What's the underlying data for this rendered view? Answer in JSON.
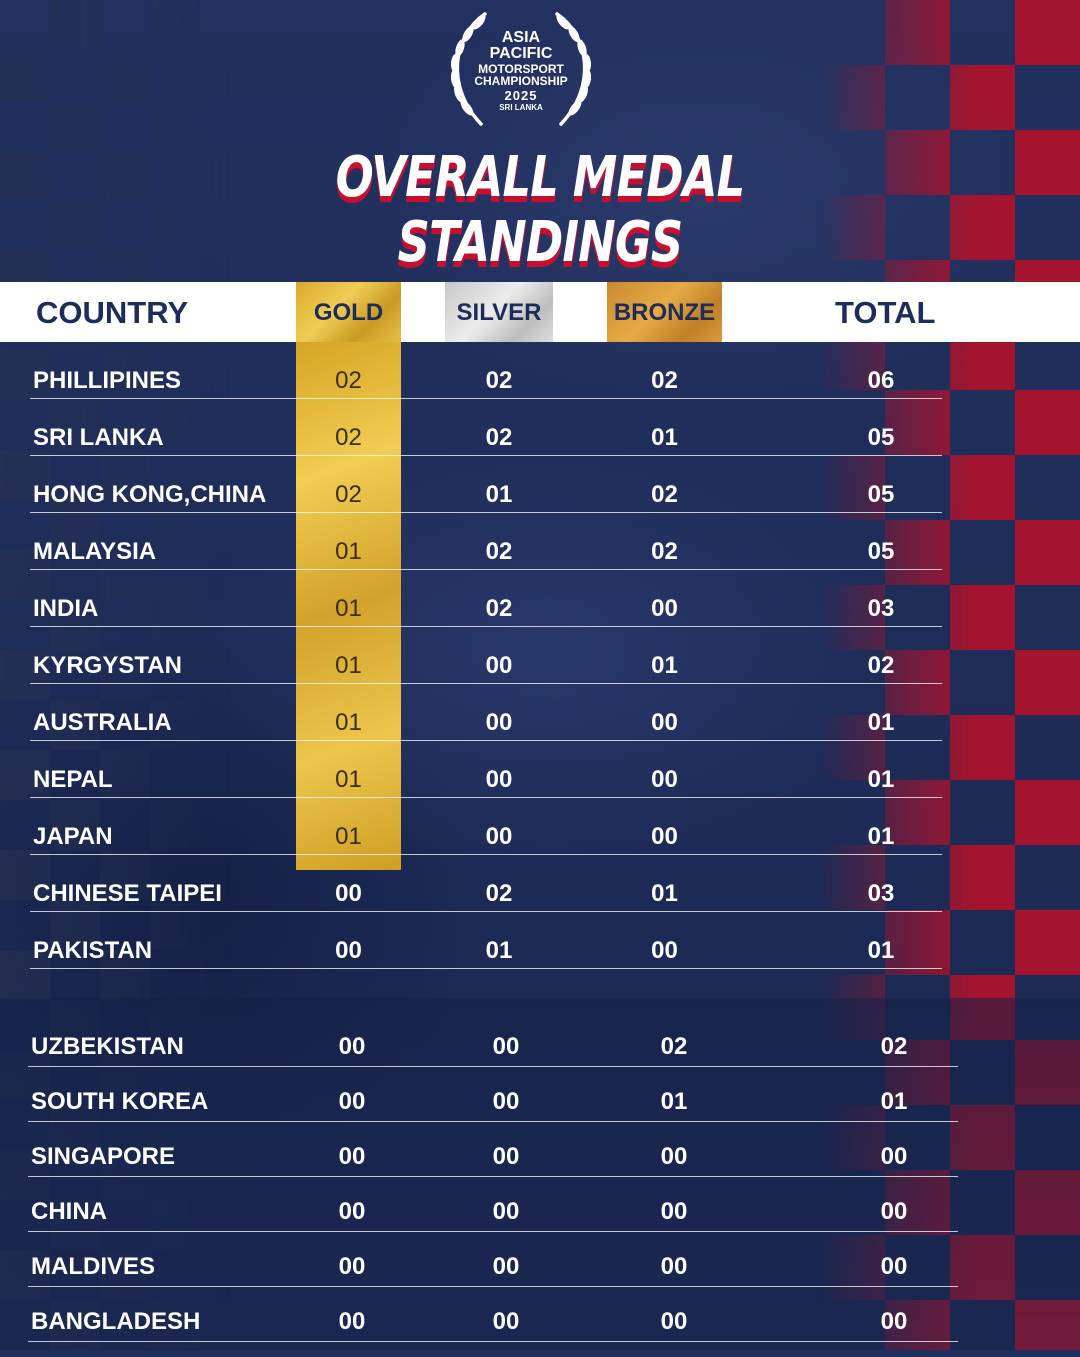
{
  "logo": {
    "line1": "ASIA",
    "line2": "PACIFIC",
    "line3": "MOTORSPORT",
    "line4": "CHAMPIONSHIP",
    "line5": "2025",
    "line6": "SRI LANKA",
    "icon": "laurel-wreath-icon"
  },
  "title": {
    "line1": "Overall Medal",
    "line2": "Standings"
  },
  "headers": {
    "country": "COUNTRY",
    "gold": "GOLD",
    "silver": "SILVER",
    "bronze": "BRONZE",
    "total": "TOTAL"
  },
  "colors": {
    "gold": "#e6bc3e",
    "silver": "#d6d6d6",
    "bronze": "#d8983a",
    "accent_red": "#c8102e",
    "navy": "#1c2d5c"
  },
  "rows": [
    {
      "country": "PHILLIPINES",
      "gold": "02",
      "silver": "02",
      "bronze": "02",
      "total": "06"
    },
    {
      "country": "SRI LANKA",
      "gold": "02",
      "silver": "02",
      "bronze": "01",
      "total": "05"
    },
    {
      "country": "HONG KONG,CHINA",
      "gold": "02",
      "silver": "01",
      "bronze": "02",
      "total": "05"
    },
    {
      "country": "MALAYSIA",
      "gold": "01",
      "silver": "02",
      "bronze": "02",
      "total": "05"
    },
    {
      "country": "INDIA",
      "gold": "01",
      "silver": "02",
      "bronze": "00",
      "total": "03"
    },
    {
      "country": "KYRGYSTAN",
      "gold": "01",
      "silver": "00",
      "bronze": "01",
      "total": "02"
    },
    {
      "country": "AUSTRALIA",
      "gold": "01",
      "silver": "00",
      "bronze": "00",
      "total": "01"
    },
    {
      "country": "NEPAL",
      "gold": "01",
      "silver": "00",
      "bronze": "00",
      "total": "01"
    },
    {
      "country": "JAPAN",
      "gold": "01",
      "silver": "00",
      "bronze": "00",
      "total": "01"
    },
    {
      "country": "CHINESE TAIPEI",
      "gold": "00",
      "silver": "02",
      "bronze": "01",
      "total": "03"
    },
    {
      "country": "PAKISTAN",
      "gold": "00",
      "silver": "01",
      "bronze": "00",
      "total": "01"
    }
  ],
  "lower_rows": [
    {
      "country": "UZBEKISTAN",
      "gold": "00",
      "silver": "00",
      "bronze": "02",
      "total": "02"
    },
    {
      "country": "SOUTH KOREA",
      "gold": "00",
      "silver": "00",
      "bronze": "01",
      "total": "01"
    },
    {
      "country": "SINGAPORE",
      "gold": "00",
      "silver": "00",
      "bronze": "00",
      "total": "00"
    },
    {
      "country": "CHINA",
      "gold": "00",
      "silver": "00",
      "bronze": "00",
      "total": "00"
    },
    {
      "country": "MALDIVES",
      "gold": "00",
      "silver": "00",
      "bronze": "00",
      "total": "00"
    },
    {
      "country": "BANGLADESH",
      "gold": "00",
      "silver": "00",
      "bronze": "00",
      "total": "00"
    }
  ]
}
